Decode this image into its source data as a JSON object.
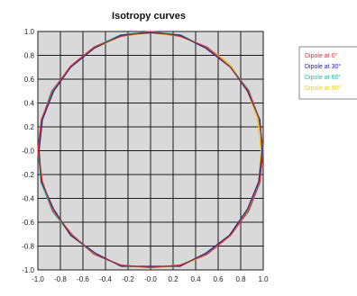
{
  "chart_data": {
    "type": "line",
    "title": "Isotropy curves",
    "xlabel": "",
    "ylabel": "",
    "xlim": [
      -1.0,
      1.0
    ],
    "ylim": [
      -1.0,
      1.0
    ],
    "xticks": [
      "-1.0",
      "-0.8",
      "-0.6",
      "-0.4",
      "-0.2",
      "-0.0",
      "0.2",
      "0.4",
      "0.6",
      "0.8",
      "1.0"
    ],
    "yticks": [
      "1.0",
      "0.8",
      "0.6",
      "0.4",
      "0.2",
      "-0.0",
      "-0.2",
      "-0.4",
      "-0.6",
      "-0.8",
      "-1.0"
    ],
    "grid": true,
    "plot_background": "#d9d9d9",
    "grid_color": "#1a1a1a",
    "legend_position": "right",
    "series": [
      {
        "name": "Dipole at 0°",
        "color": "#e0303c",
        "points": [
          [
            1.0,
            0.0
          ],
          [
            0.96,
            0.28
          ],
          [
            0.87,
            0.5
          ],
          [
            0.7,
            0.71
          ],
          [
            0.5,
            0.87
          ],
          [
            0.26,
            0.96
          ],
          [
            0.0,
            1.0
          ],
          [
            -0.26,
            0.96
          ],
          [
            -0.5,
            0.87
          ],
          [
            -0.71,
            0.71
          ],
          [
            -0.87,
            0.5
          ],
          [
            -0.97,
            0.26
          ],
          [
            -1.0,
            0.0
          ],
          [
            -0.96,
            -0.26
          ],
          [
            -0.87,
            -0.5
          ],
          [
            -0.7,
            -0.7
          ],
          [
            -0.5,
            -0.87
          ],
          [
            -0.26,
            -0.96
          ],
          [
            0.0,
            -0.98
          ],
          [
            0.26,
            -0.96
          ],
          [
            0.5,
            -0.87
          ],
          [
            0.71,
            -0.71
          ],
          [
            0.87,
            -0.5
          ],
          [
            0.97,
            -0.26
          ],
          [
            1.0,
            0.0
          ]
        ]
      },
      {
        "name": "Dipole at 30°",
        "color": "#2020c0",
        "points": [
          [
            0.99,
            0.0
          ],
          [
            0.97,
            0.26
          ],
          [
            0.86,
            0.5
          ],
          [
            0.71,
            0.7
          ],
          [
            0.49,
            0.86
          ],
          [
            0.26,
            0.97
          ],
          [
            0.0,
            0.99
          ],
          [
            -0.26,
            0.97
          ],
          [
            -0.5,
            0.86
          ],
          [
            -0.71,
            0.7
          ],
          [
            -0.86,
            0.5
          ],
          [
            -0.96,
            0.26
          ],
          [
            -0.99,
            0.0
          ],
          [
            -0.97,
            -0.26
          ],
          [
            -0.86,
            -0.49
          ],
          [
            -0.71,
            -0.71
          ],
          [
            -0.49,
            -0.86
          ],
          [
            -0.26,
            -0.97
          ],
          [
            0.0,
            -0.97
          ],
          [
            0.26,
            -0.97
          ],
          [
            0.49,
            -0.86
          ],
          [
            0.7,
            -0.71
          ],
          [
            0.86,
            -0.49
          ],
          [
            0.96,
            -0.26
          ],
          [
            0.99,
            0.0
          ]
        ]
      },
      {
        "name": "Dipole at 60°",
        "color": "#20c0a0",
        "points": [
          [
            1.0,
            0.02
          ],
          [
            0.96,
            0.27
          ],
          [
            0.87,
            0.51
          ],
          [
            0.7,
            0.71
          ],
          [
            0.5,
            0.86
          ],
          [
            0.27,
            0.97
          ],
          [
            0.0,
            1.0
          ],
          [
            -0.27,
            0.97
          ],
          [
            -0.5,
            0.87
          ],
          [
            -0.7,
            0.71
          ],
          [
            -0.88,
            0.5
          ],
          [
            -0.97,
            0.25
          ],
          [
            -1.0,
            0.0
          ],
          [
            -0.97,
            -0.27
          ],
          [
            -0.87,
            -0.51
          ],
          [
            -0.7,
            -0.71
          ],
          [
            -0.5,
            -0.87
          ],
          [
            -0.27,
            -0.96
          ],
          [
            0.0,
            -0.98
          ],
          [
            0.27,
            -0.96
          ],
          [
            0.5,
            -0.86
          ],
          [
            0.7,
            -0.71
          ],
          [
            0.87,
            -0.51
          ],
          [
            0.97,
            -0.27
          ],
          [
            1.0,
            0.02
          ]
        ]
      },
      {
        "name": "Dipole at 90°",
        "color": "#e8d020",
        "points": [
          [
            0.98,
            0.0
          ],
          [
            0.95,
            0.26
          ],
          [
            0.86,
            0.5
          ],
          [
            0.71,
            0.72
          ],
          [
            0.5,
            0.87
          ],
          [
            0.26,
            0.96
          ],
          [
            0.0,
            0.99
          ],
          [
            -0.26,
            0.96
          ],
          [
            -0.5,
            0.86
          ],
          [
            -0.72,
            0.7
          ],
          [
            -0.87,
            0.49
          ],
          [
            -0.96,
            0.26
          ],
          [
            -0.99,
            0.0
          ],
          [
            -0.96,
            -0.26
          ],
          [
            -0.87,
            -0.5
          ],
          [
            -0.71,
            -0.71
          ],
          [
            -0.5,
            -0.86
          ],
          [
            -0.26,
            -0.97
          ],
          [
            0.0,
            -0.98
          ],
          [
            0.26,
            -0.97
          ],
          [
            0.5,
            -0.87
          ],
          [
            0.71,
            -0.7
          ],
          [
            0.86,
            -0.5
          ],
          [
            0.96,
            -0.26
          ],
          [
            0.98,
            0.0
          ]
        ]
      }
    ],
    "legend_labels": [
      "Dipole at 0°",
      "Dipole at 30°",
      "Dipole at 60°",
      "Dipole at 90°"
    ]
  }
}
